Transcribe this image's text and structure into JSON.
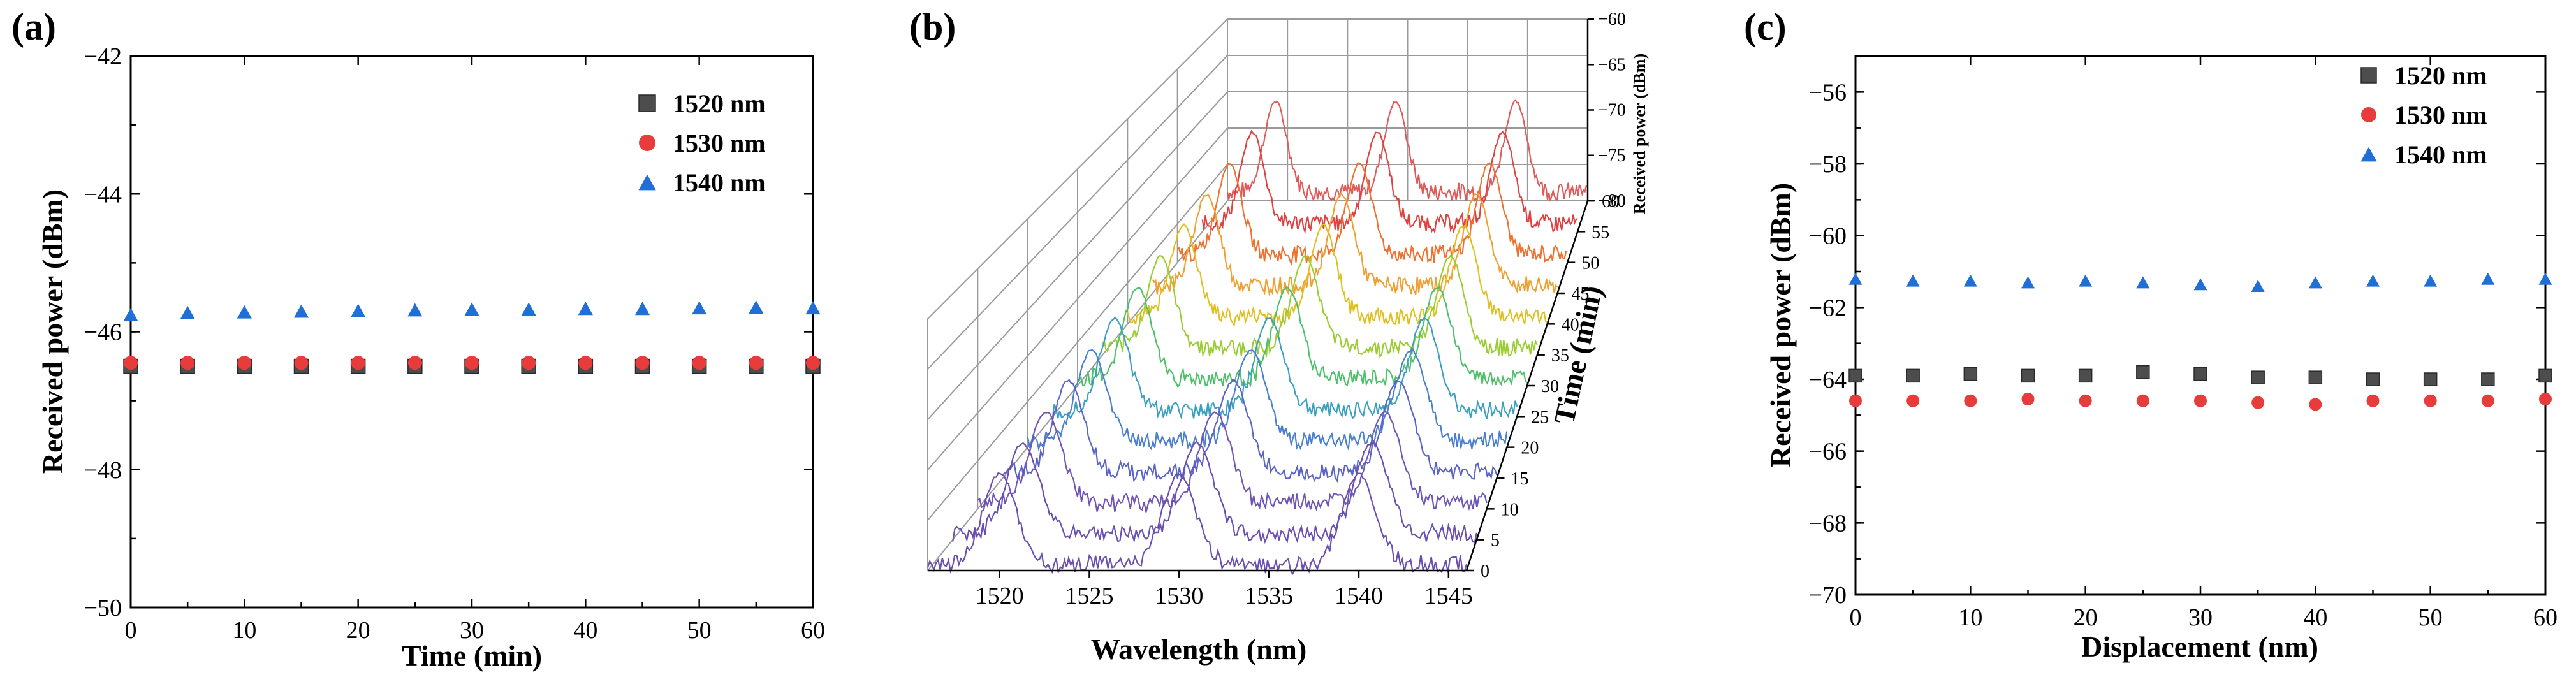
{
  "colors": {
    "s1520": "#4d4d4d",
    "s1530": "#e83b3b",
    "s1540": "#1f6fd6",
    "waterfall": [
      "#6a4fb0",
      "#6a4fb0",
      "#6f55b8",
      "#5a63c8",
      "#4a7fd0",
      "#3aa0c0",
      "#4fc06a",
      "#9acd32",
      "#e0c020",
      "#f0a030",
      "#f07030",
      "#e04040",
      "#e05a5a"
    ]
  },
  "chart_data": [
    {
      "panel_label": "(a)",
      "type": "scatter",
      "xlabel": "Time (min)",
      "ylabel": "Received power (dBm)",
      "xlim": [
        0,
        60
      ],
      "ylim": [
        -50,
        -42
      ],
      "xticks": [
        "0",
        "10",
        "20",
        "30",
        "40",
        "50",
        "60"
      ],
      "yticks": [
        "-50",
        "-48",
        "-46",
        "-44",
        "-42"
      ],
      "legend_position": "top-right",
      "x": [
        0,
        5,
        10,
        15,
        20,
        25,
        30,
        35,
        40,
        45,
        50,
        55,
        60
      ],
      "series": [
        {
          "name": "1520 nm",
          "marker": "square",
          "values": [
            -46.5,
            -46.5,
            -46.5,
            -46.5,
            -46.5,
            -46.5,
            -46.5,
            -46.5,
            -46.5,
            -46.5,
            -46.5,
            -46.5,
            -46.5
          ]
        },
        {
          "name": "1530 nm",
          "marker": "circle",
          "values": [
            -46.45,
            -46.45,
            -46.45,
            -46.45,
            -46.45,
            -46.45,
            -46.45,
            -46.45,
            -46.45,
            -46.45,
            -46.45,
            -46.45,
            -46.45
          ]
        },
        {
          "name": "1540 nm",
          "marker": "triangle",
          "values": [
            -45.75,
            -45.72,
            -45.71,
            -45.7,
            -45.69,
            -45.68,
            -45.67,
            -45.67,
            -45.66,
            -45.66,
            -45.65,
            -45.64,
            -45.65
          ]
        }
      ]
    },
    {
      "panel_label": "(b)",
      "type": "waterfall",
      "xlabel": "Wavelength (nm)",
      "ylabel": "Time (min)",
      "zlabel": "Received power (dBm)",
      "xlim": [
        1516,
        1546
      ],
      "xticks": [
        "1520",
        "1525",
        "1530",
        "1535",
        "1540",
        "1545"
      ],
      "ylim": [
        0,
        60
      ],
      "yticks": [
        "0",
        "5",
        "10",
        "15",
        "20",
        "25",
        "30",
        "35",
        "40",
        "45",
        "50",
        "55",
        "60"
      ],
      "zlim": [
        -80,
        -60
      ],
      "zticks": [
        "-80",
        "-75",
        "-70",
        "-65",
        "-60"
      ],
      "traces_time": [
        0,
        5,
        10,
        15,
        20,
        25,
        30,
        35,
        40,
        45,
        50,
        55,
        60
      ],
      "peak_wavelengths": [
        1520,
        1530,
        1540
      ],
      "peak_power": -62,
      "noise_floor": -79
    },
    {
      "panel_label": "(c)",
      "type": "scatter",
      "xlabel": "Displacement (nm)",
      "ylabel": "Received power (dBm)",
      "xlim": [
        0,
        60
      ],
      "ylim": [
        -70,
        -55
      ],
      "xticks": [
        "0",
        "10",
        "20",
        "30",
        "40",
        "50",
        "60"
      ],
      "yticks": [
        "-70",
        "-68",
        "-66",
        "-64",
        "-62",
        "-60",
        "-58",
        "-56"
      ],
      "legend_position": "top-right",
      "x": [
        0,
        5,
        10,
        15,
        20,
        25,
        30,
        35,
        40,
        45,
        50,
        55,
        60
      ],
      "series": [
        {
          "name": "1520 nm",
          "marker": "square",
          "values": [
            -63.9,
            -63.9,
            -63.85,
            -63.9,
            -63.9,
            -63.8,
            -63.85,
            -63.95,
            -63.95,
            -64.0,
            -64.0,
            -64.0,
            -63.9
          ]
        },
        {
          "name": "1530 nm",
          "marker": "circle",
          "values": [
            -64.6,
            -64.6,
            -64.6,
            -64.55,
            -64.6,
            -64.6,
            -64.6,
            -64.65,
            -64.7,
            -64.6,
            -64.6,
            -64.6,
            -64.55
          ]
        },
        {
          "name": "1540 nm",
          "marker": "triangle",
          "values": [
            -61.2,
            -61.25,
            -61.25,
            -61.3,
            -61.25,
            -61.3,
            -61.35,
            -61.4,
            -61.3,
            -61.25,
            -61.25,
            -61.2,
            -61.2
          ]
        }
      ]
    }
  ]
}
